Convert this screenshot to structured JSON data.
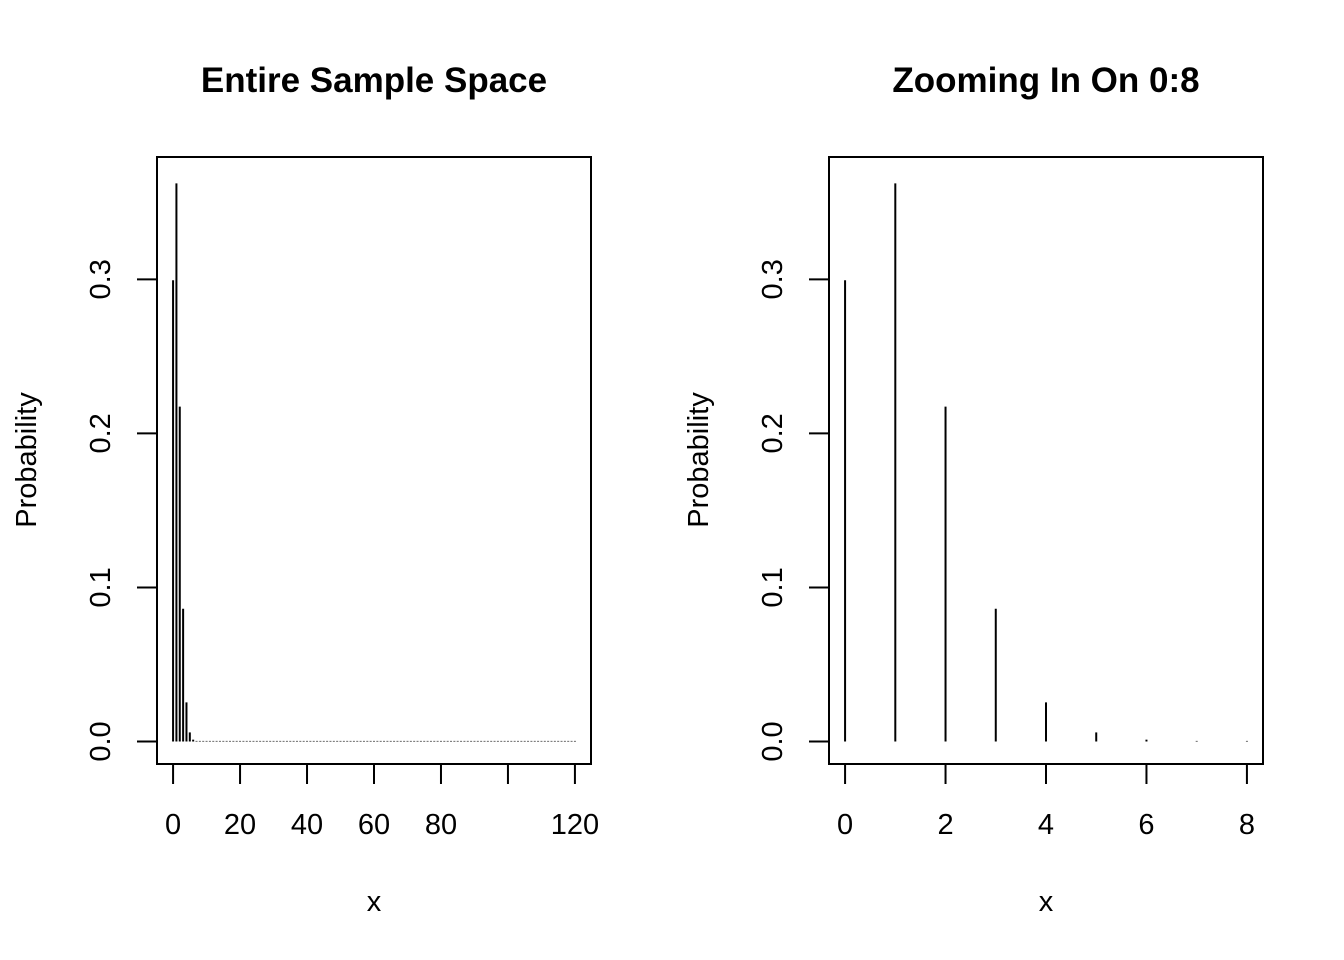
{
  "colors": {
    "background": "#ffffff",
    "ink": "#000000"
  },
  "chart_data": [
    {
      "type": "bar",
      "style": "histogram-spikes",
      "title": "Entire Sample Space",
      "xlabel": "x",
      "ylabel": "Probability",
      "xlim": [
        -4.8,
        124.8
      ],
      "ylim": [
        -0.0146,
        0.3794
      ],
      "xticks": [
        0,
        20,
        40,
        60,
        80,
        100,
        120
      ],
      "xtick_labels": [
        "0",
        "20",
        "40",
        "60",
        "80",
        "",
        "120"
      ],
      "yticks": [
        0.0,
        0.1,
        0.2,
        0.3
      ],
      "ytick_labels": [
        "0.0",
        "0.1",
        "0.2",
        "0.3"
      ],
      "x_start": 0,
      "values": [
        0.2994,
        0.3623,
        0.2174,
        0.0862,
        0.0254,
        0.0059,
        0.0012,
        0.0002,
        3e-05,
        0,
        0,
        0,
        0,
        0,
        0,
        0,
        0,
        0,
        0,
        0,
        0,
        0,
        0,
        0,
        0,
        0,
        0,
        0,
        0,
        0,
        0,
        0,
        0,
        0,
        0,
        0,
        0,
        0,
        0,
        0,
        0,
        0,
        0,
        0,
        0,
        0,
        0,
        0,
        0,
        0,
        0,
        0,
        0,
        0,
        0,
        0,
        0,
        0,
        0,
        0,
        0,
        0,
        0,
        0,
        0,
        0,
        0,
        0,
        0,
        0,
        0,
        0,
        0,
        0,
        0,
        0,
        0,
        0,
        0,
        0,
        0,
        0,
        0,
        0,
        0,
        0,
        0,
        0,
        0,
        0,
        0,
        0,
        0,
        0,
        0,
        0,
        0,
        0,
        0,
        0,
        0,
        0,
        0,
        0,
        0,
        0,
        0,
        0,
        0,
        0,
        0,
        0,
        0,
        0,
        0,
        0,
        0,
        0,
        0,
        0,
        0
      ],
      "grid": false,
      "legend": "none"
    },
    {
      "type": "bar",
      "style": "histogram-spikes",
      "title": "Zooming In On 0:8",
      "xlabel": "x",
      "ylabel": "Probability",
      "xlim": [
        -0.32,
        8.32
      ],
      "ylim": [
        -0.0146,
        0.3794
      ],
      "xticks": [
        0,
        2,
        4,
        6,
        8
      ],
      "xtick_labels": [
        "0",
        "2",
        "4",
        "6",
        "8"
      ],
      "yticks": [
        0.0,
        0.1,
        0.2,
        0.3
      ],
      "ytick_labels": [
        "0.0",
        "0.1",
        "0.2",
        "0.3"
      ],
      "x_start": 0,
      "values": [
        0.2994,
        0.3623,
        0.2174,
        0.0862,
        0.0254,
        0.0059,
        0.0012,
        0.0002,
        3e-05
      ],
      "grid": false,
      "legend": "none"
    }
  ]
}
